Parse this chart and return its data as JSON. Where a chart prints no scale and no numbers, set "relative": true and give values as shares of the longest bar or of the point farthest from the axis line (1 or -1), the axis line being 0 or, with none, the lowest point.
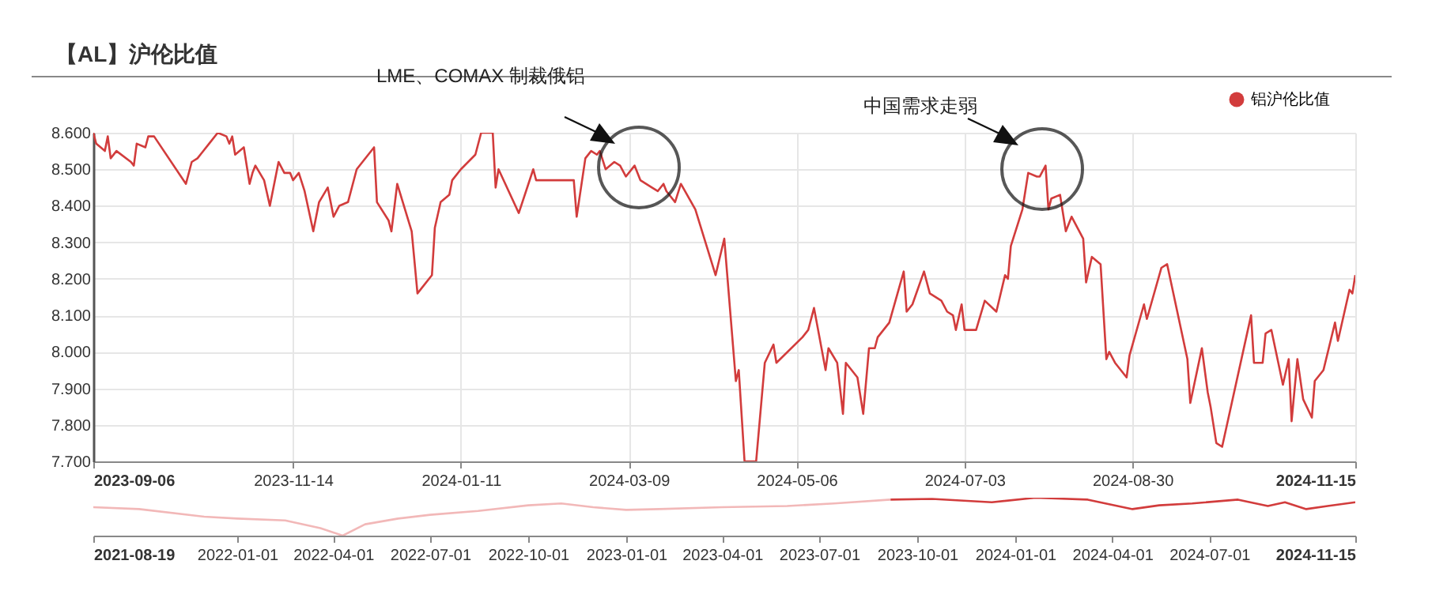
{
  "chart_data": [
    {
      "type": "line",
      "title": "【AL】沪伦比值",
      "xlim": [
        "2023-09-06",
        "2024-11-15"
      ],
      "xticks": [
        "2023-09-06",
        "2023-11-14",
        "2024-01-11",
        "2024-03-09",
        "2024-05-06",
        "2024-07-03",
        "2024-08-30",
        "2024-11-15"
      ],
      "ylim": [
        7.7,
        8.6
      ],
      "yticks": [
        {
          "value": 7.7,
          "label": "7.700"
        },
        {
          "value": 7.8,
          "label": "7.800"
        },
        {
          "value": 7.9,
          "label": "7.900"
        },
        {
          "value": 8.0,
          "label": "8.000"
        },
        {
          "value": 8.1,
          "label": "8.100"
        },
        {
          "value": 8.2,
          "label": "8.200"
        },
        {
          "value": 8.3,
          "label": "8.300"
        },
        {
          "value": 8.4,
          "label": "8.400"
        },
        {
          "value": 8.5,
          "label": "8.500"
        },
        {
          "value": 8.6,
          "label": "8.600"
        }
      ],
      "grid": true,
      "legend": "top right",
      "annotations": [
        "LME、COMAX 制裁俄铝",
        "中国需求走弱"
      ],
      "x": [
        "2023-09-06",
        "2023-09-07",
        "2023-09-10",
        "2023-09-11",
        "2023-09-12",
        "2023-09-14",
        "2023-09-19",
        "2023-09-20",
        "2023-09-21",
        "2023-09-24",
        "2023-09-25",
        "2023-09-27",
        "2023-10-08",
        "2023-10-10",
        "2023-10-12",
        "2023-10-16",
        "2023-10-19",
        "2023-10-22",
        "2023-10-23",
        "2023-10-24",
        "2023-10-25",
        "2023-10-28",
        "2023-10-30",
        "2023-10-31",
        "2023-11-01",
        "2023-11-04",
        "2023-11-06",
        "2023-11-09",
        "2023-11-11",
        "2023-11-13",
        "2023-11-14",
        "2023-11-16",
        "2023-11-18",
        "2023-11-21",
        "2023-11-23",
        "2023-11-26",
        "2023-11-28",
        "2023-11-30",
        "2023-12-03",
        "2023-12-06",
        "2023-12-12",
        "2023-12-13",
        "2023-12-17",
        "2023-12-18",
        "2023-12-20",
        "2023-12-25",
        "2023-12-27",
        "2024-01-01",
        "2024-01-02",
        "2024-01-04",
        "2024-01-07",
        "2024-01-08",
        "2024-01-11",
        "2024-01-16",
        "2024-01-18",
        "2024-01-22",
        "2024-01-23",
        "2024-01-24",
        "2024-01-31",
        "2024-02-05",
        "2024-02-06",
        "2024-02-19",
        "2024-02-20",
        "2024-02-23",
        "2024-02-25",
        "2024-02-27",
        "2024-02-28",
        "2024-03-01",
        "2024-03-04",
        "2024-03-06",
        "2024-03-08",
        "2024-03-11",
        "2024-03-13",
        "2024-03-17",
        "2024-03-19",
        "2024-03-21",
        "2024-03-22",
        "2024-03-25",
        "2024-03-27",
        "2024-04-01",
        "2024-04-08",
        "2024-04-11",
        "2024-04-15",
        "2024-04-16",
        "2024-04-18",
        "2024-04-21",
        "2024-04-22",
        "2024-04-25",
        "2024-04-28",
        "2024-04-29",
        "2024-05-08",
        "2024-05-10",
        "2024-05-12",
        "2024-05-16",
        "2024-05-17",
        "2024-05-20",
        "2024-05-22",
        "2024-05-23",
        "2024-05-27",
        "2024-05-29",
        "2024-05-31",
        "2024-06-02",
        "2024-06-03",
        "2024-06-07",
        "2024-06-12",
        "2024-06-13",
        "2024-06-15",
        "2024-06-19",
        "2024-06-21",
        "2024-06-25",
        "2024-06-27",
        "2024-06-29",
        "2024-06-30",
        "2024-07-02",
        "2024-07-03",
        "2024-07-07",
        "2024-07-10",
        "2024-07-14",
        "2024-07-17",
        "2024-07-18",
        "2024-07-19",
        "2024-07-23",
        "2024-07-24",
        "2024-07-25",
        "2024-07-28",
        "2024-07-29",
        "2024-07-31",
        "2024-08-01",
        "2024-08-02",
        "2024-08-05",
        "2024-08-07",
        "2024-08-09",
        "2024-08-13",
        "2024-08-14",
        "2024-08-16",
        "2024-08-19",
        "2024-08-21",
        "2024-08-22",
        "2024-08-24",
        "2024-08-28",
        "2024-08-29",
        "2024-09-03",
        "2024-09-04",
        "2024-09-09",
        "2024-09-11",
        "2024-09-18",
        "2024-09-19",
        "2024-09-23",
        "2024-09-25",
        "2024-09-26",
        "2024-09-28",
        "2024-09-30",
        "2024-10-10",
        "2024-10-11",
        "2024-10-14",
        "2024-10-15",
        "2024-10-17",
        "2024-10-21",
        "2024-10-23",
        "2024-10-24",
        "2024-10-26",
        "2024-10-28",
        "2024-10-31",
        "2024-11-01",
        "2024-11-04",
        "2024-11-08",
        "2024-11-09",
        "2024-11-13",
        "2024-11-14",
        "2024-11-15"
      ],
      "series": [
        {
          "name": "铝沪伦比值",
          "color": "#d23c3c",
          "values": [
            8.6,
            8.57,
            8.55,
            8.59,
            8.53,
            8.55,
            8.52,
            8.51,
            8.57,
            8.56,
            8.59,
            8.59,
            8.46,
            8.52,
            8.53,
            8.57,
            8.6,
            8.59,
            8.57,
            8.59,
            8.54,
            8.56,
            8.46,
            8.49,
            8.51,
            8.47,
            8.4,
            8.52,
            8.49,
            8.49,
            8.47,
            8.49,
            8.44,
            8.33,
            8.41,
            8.45,
            8.37,
            8.4,
            8.41,
            8.5,
            8.56,
            8.41,
            8.36,
            8.33,
            8.46,
            8.33,
            8.16,
            8.21,
            8.34,
            8.41,
            8.43,
            8.47,
            8.5,
            8.54,
            8.6,
            8.6,
            8.45,
            8.5,
            8.38,
            8.5,
            8.47,
            8.47,
            8.37,
            8.53,
            8.55,
            8.54,
            8.55,
            8.5,
            8.52,
            8.51,
            8.48,
            8.51,
            8.47,
            8.45,
            8.44,
            8.46,
            8.44,
            8.41,
            8.46,
            8.39,
            8.21,
            8.31,
            7.92,
            7.95,
            7.7,
            7.7,
            7.7,
            7.97,
            8.02,
            7.97,
            8.04,
            8.06,
            8.12,
            7.95,
            8.01,
            7.97,
            7.83,
            7.97,
            7.93,
            7.83,
            8.01,
            8.01,
            8.04,
            8.08,
            8.22,
            8.11,
            8.13,
            8.22,
            8.16,
            8.14,
            8.11,
            8.1,
            8.06,
            8.13,
            8.06,
            8.06,
            8.14,
            8.11,
            8.21,
            8.2,
            8.29,
            8.39,
            8.44,
            8.49,
            8.48,
            8.48,
            8.51,
            8.39,
            8.42,
            8.43,
            8.33,
            8.37,
            8.31,
            8.19,
            8.26,
            8.24,
            7.98,
            8.0,
            7.97,
            7.93,
            7.99,
            8.13,
            8.09,
            8.23,
            8.24,
            7.98,
            7.86,
            8.01,
            7.89,
            7.85,
            7.75,
            7.74,
            8.1,
            7.97,
            7.97,
            8.05,
            8.06,
            7.91,
            7.98,
            7.81,
            7.98,
            7.87,
            7.82,
            7.92,
            7.95,
            8.08,
            8.03,
            8.17,
            8.16,
            8.21
          ]
        }
      ]
    },
    {
      "type": "line",
      "relative": true,
      "tick_labels": "x",
      "xlim": [
        "2021-08-19",
        "2024-11-15"
      ],
      "xticks": [
        "2021-08-19",
        "2022-01-01",
        "2022-04-01",
        "2022-07-01",
        "2022-10-01",
        "2023-01-01",
        "2023-04-01",
        "2023-07-01",
        "2023-10-01",
        "2024-01-01",
        "2024-04-01",
        "2024-07-01",
        "2024-11-15"
      ],
      "series": [
        {
          "color": "#f2b8b8",
          "x": [
            "2021-08-19",
            "2021-10-01",
            "2021-12-01",
            "2022-01-01",
            "2022-02-15",
            "2022-03-20",
            "2022-04-10",
            "2022-05-01",
            "2022-06-01",
            "2022-07-01",
            "2022-08-15",
            "2022-10-01",
            "2022-11-01",
            "2022-12-01",
            "2023-01-01",
            "2023-02-01",
            "2023-04-01",
            "2023-06-01",
            "2023-07-15",
            "2023-09-06"
          ],
          "values": [
            0.75,
            0.7,
            0.5,
            0.45,
            0.4,
            0.2,
            0,
            0.3,
            0.45,
            0.55,
            0.65,
            0.8,
            0.85,
            0.75,
            0.68,
            0.7,
            0.75,
            0.78,
            0.85,
            0.95
          ]
        },
        {
          "color": "#d23c3c",
          "x": [
            "2023-09-06",
            "2023-10-15",
            "2023-12-10",
            "2024-01-20",
            "2024-03-09",
            "2024-04-20",
            "2024-05-15",
            "2024-06-15",
            "2024-07-28",
            "2024-08-25",
            "2024-09-10",
            "2024-09-30",
            "2024-10-20",
            "2024-11-15"
          ],
          "values": [
            0.95,
            0.97,
            0.88,
            1,
            0.95,
            0.7,
            0.8,
            0.85,
            0.95,
            0.78,
            0.88,
            0.7,
            0.78,
            0.88
          ]
        }
      ]
    }
  ]
}
